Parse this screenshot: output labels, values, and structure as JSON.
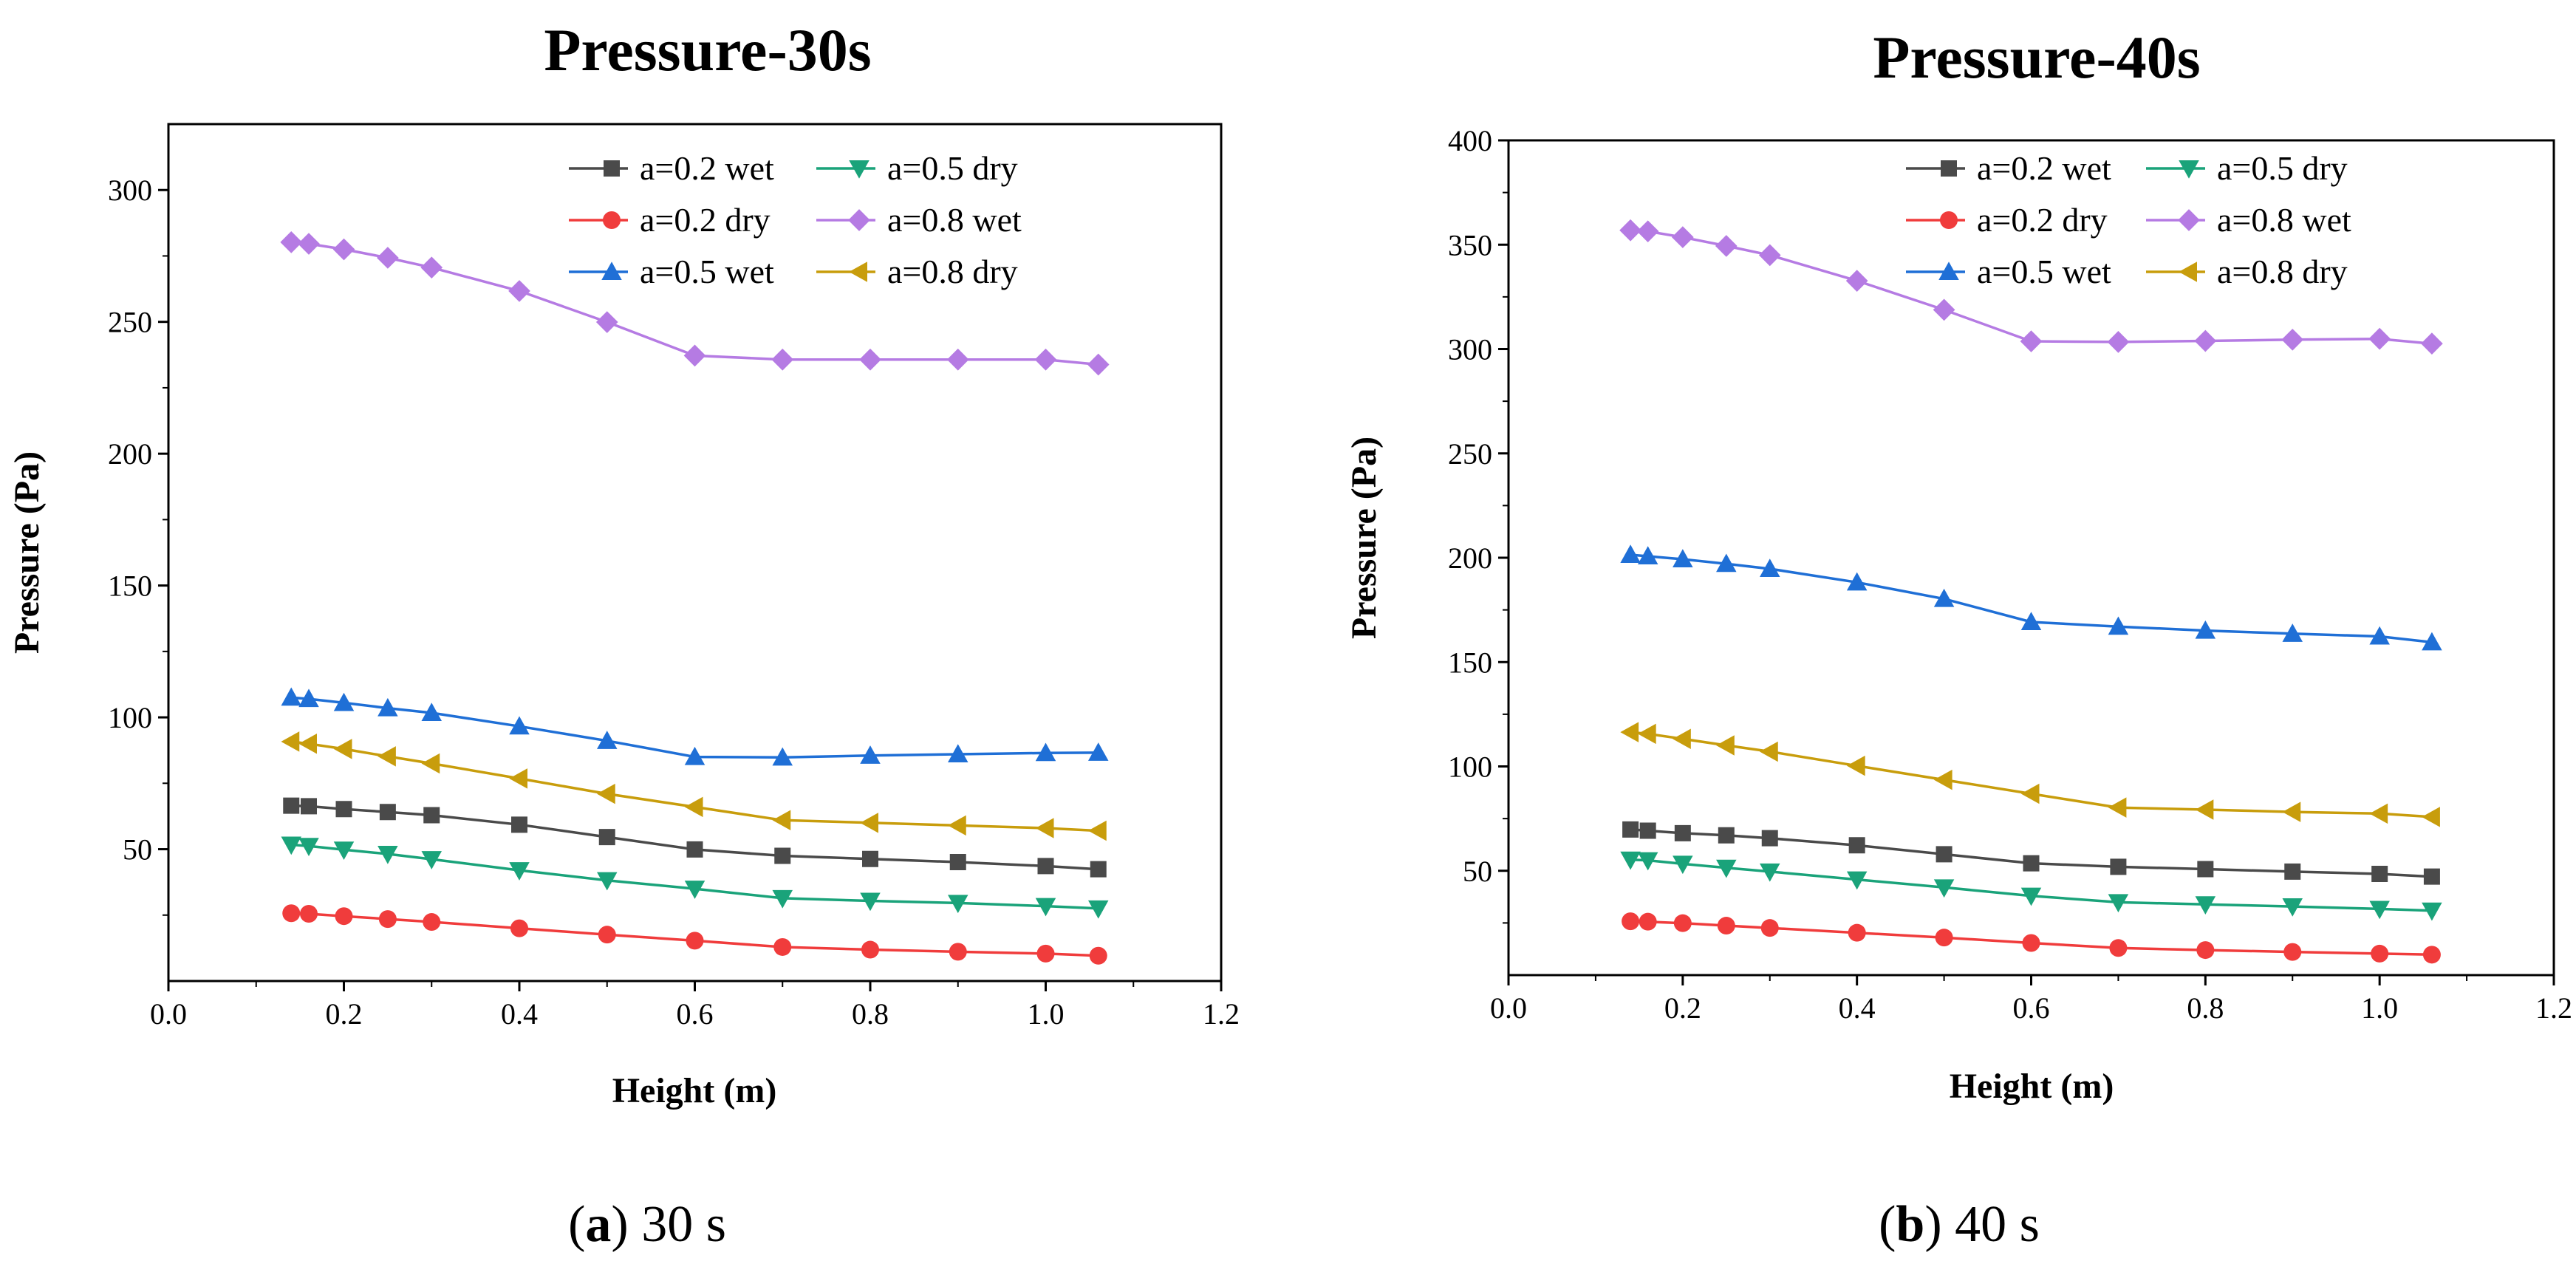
{
  "chart_data": [
    {
      "type": "line",
      "title": "Pressure-30s",
      "xlabel": "Height (m)",
      "ylabel": "Pressure (Pa)",
      "xlim": [
        0.0,
        1.2
      ],
      "ylim": [
        0,
        325
      ],
      "xticks": [
        0.0,
        0.2,
        0.4,
        0.6,
        0.8,
        1.0,
        1.2
      ],
      "xtick_labels": [
        "0.0",
        "0.2",
        "0.4",
        "0.6",
        "0.8",
        "1.0",
        "1.2"
      ],
      "yticks": [
        50,
        100,
        150,
        200,
        250,
        300
      ],
      "ytick_labels": [
        "50",
        "100",
        "150",
        "200",
        "250",
        "300"
      ],
      "legend_position": "top-right",
      "caption": {
        "letter": "a",
        "text": " 30 s"
      },
      "x": [
        0.14,
        0.16,
        0.2,
        0.25,
        0.3,
        0.4,
        0.5,
        0.6,
        0.7,
        0.8,
        0.9,
        1.0,
        1.06
      ],
      "series": [
        {
          "name": "a=0.2 wet",
          "marker": "square",
          "color": "#4a4a4a",
          "values": [
            66.5,
            66.3,
            65.2,
            64.1,
            62.9,
            59.3,
            54.6,
            49.9,
            47.5,
            46.3,
            45.1,
            43.6,
            42.4
          ]
        },
        {
          "name": "a=0.2 dry",
          "marker": "circle",
          "color": "#f03c3c",
          "values": [
            25.7,
            25.5,
            24.6,
            23.5,
            22.4,
            20.0,
            17.6,
            15.3,
            12.9,
            11.9,
            11.1,
            10.4,
            9.6
          ]
        },
        {
          "name": "a=0.5 wet",
          "marker": "triangle-up",
          "color": "#1f6fd6",
          "values": [
            107.5,
            107.0,
            105.5,
            103.5,
            101.7,
            96.6,
            91.1,
            85.0,
            84.8,
            85.5,
            86.0,
            86.5,
            86.6
          ]
        },
        {
          "name": "a=0.5 dry",
          "marker": "triangle-down",
          "color": "#1aa37a",
          "values": [
            51.7,
            51.2,
            49.8,
            48.2,
            46.2,
            42.0,
            38.2,
            35.0,
            31.4,
            30.4,
            29.6,
            28.4,
            27.5
          ]
        },
        {
          "name": "a=0.8 wet",
          "marker": "diamond",
          "color": "#b57be3",
          "values": [
            280.2,
            279.6,
            277.5,
            274.3,
            270.6,
            261.7,
            249.9,
            237.2,
            235.7,
            235.7,
            235.7,
            235.7,
            233.8
          ]
        },
        {
          "name": "a=0.8 dry",
          "marker": "triangle-left",
          "color": "#c89d0c",
          "values": [
            90.8,
            90.0,
            88.0,
            85.2,
            82.5,
            76.8,
            71.0,
            66.0,
            61.0,
            60.0,
            59.0,
            58.0,
            57.0
          ]
        }
      ]
    },
    {
      "type": "line",
      "title": "Pressure-40s",
      "xlabel": "Height (m)",
      "ylabel": "Pressure (Pa)",
      "xlim": [
        0.0,
        1.2
      ],
      "ylim": [
        0,
        400
      ],
      "xticks": [
        0.0,
        0.2,
        0.4,
        0.6,
        0.8,
        1.0,
        1.2
      ],
      "xtick_labels": [
        "0.0",
        "0.2",
        "0.4",
        "0.6",
        "0.8",
        "1.0",
        "1.2"
      ],
      "yticks": [
        50,
        100,
        150,
        200,
        250,
        300,
        350,
        400
      ],
      "ytick_labels": [
        "50",
        "100",
        "150",
        "200",
        "250",
        "300",
        "350",
        "400"
      ],
      "legend_position": "top-right",
      "caption": {
        "letter": "b",
        "text": " 40 s"
      },
      "x": [
        0.14,
        0.16,
        0.2,
        0.25,
        0.3,
        0.4,
        0.5,
        0.6,
        0.7,
        0.8,
        0.9,
        1.0,
        1.06
      ],
      "series": [
        {
          "name": "a=0.2 wet",
          "marker": "square",
          "color": "#4a4a4a",
          "values": [
            69.8,
            69.2,
            68.0,
            67.0,
            65.6,
            62.2,
            57.9,
            53.6,
            51.9,
            50.8,
            49.6,
            48.5,
            47.2
          ]
        },
        {
          "name": "a=0.2 dry",
          "marker": "circle",
          "color": "#f03c3c",
          "values": [
            25.8,
            25.6,
            24.9,
            23.7,
            22.6,
            20.3,
            18.0,
            15.4,
            13.0,
            12.0,
            11.1,
            10.3,
            9.8
          ]
        },
        {
          "name": "a=0.5 wet",
          "marker": "triangle-up",
          "color": "#1f6fd6",
          "values": [
            201.4,
            200.7,
            199.3,
            197.1,
            194.7,
            188.2,
            180.3,
            169.2,
            167.0,
            165.1,
            163.6,
            162.3,
            159.5
          ]
        },
        {
          "name": "a=0.5 dry",
          "marker": "triangle-down",
          "color": "#1aa37a",
          "values": [
            55.3,
            55.0,
            53.3,
            51.4,
            49.6,
            45.8,
            42.0,
            38.0,
            34.9,
            33.9,
            32.9,
            31.7,
            30.9
          ]
        },
        {
          "name": "a=0.8 wet",
          "marker": "diamond",
          "color": "#b57be3",
          "values": [
            356.9,
            356.4,
            353.6,
            349.4,
            345.0,
            332.7,
            318.8,
            303.7,
            303.4,
            303.9,
            304.5,
            304.9,
            302.6
          ]
        },
        {
          "name": "a=0.8 dry",
          "marker": "triangle-left",
          "color": "#c89d0c",
          "values": [
            116.4,
            115.6,
            113.2,
            110.1,
            107.1,
            100.3,
            93.6,
            86.9,
            80.3,
            79.3,
            78.2,
            77.4,
            75.8
          ]
        }
      ]
    }
  ]
}
